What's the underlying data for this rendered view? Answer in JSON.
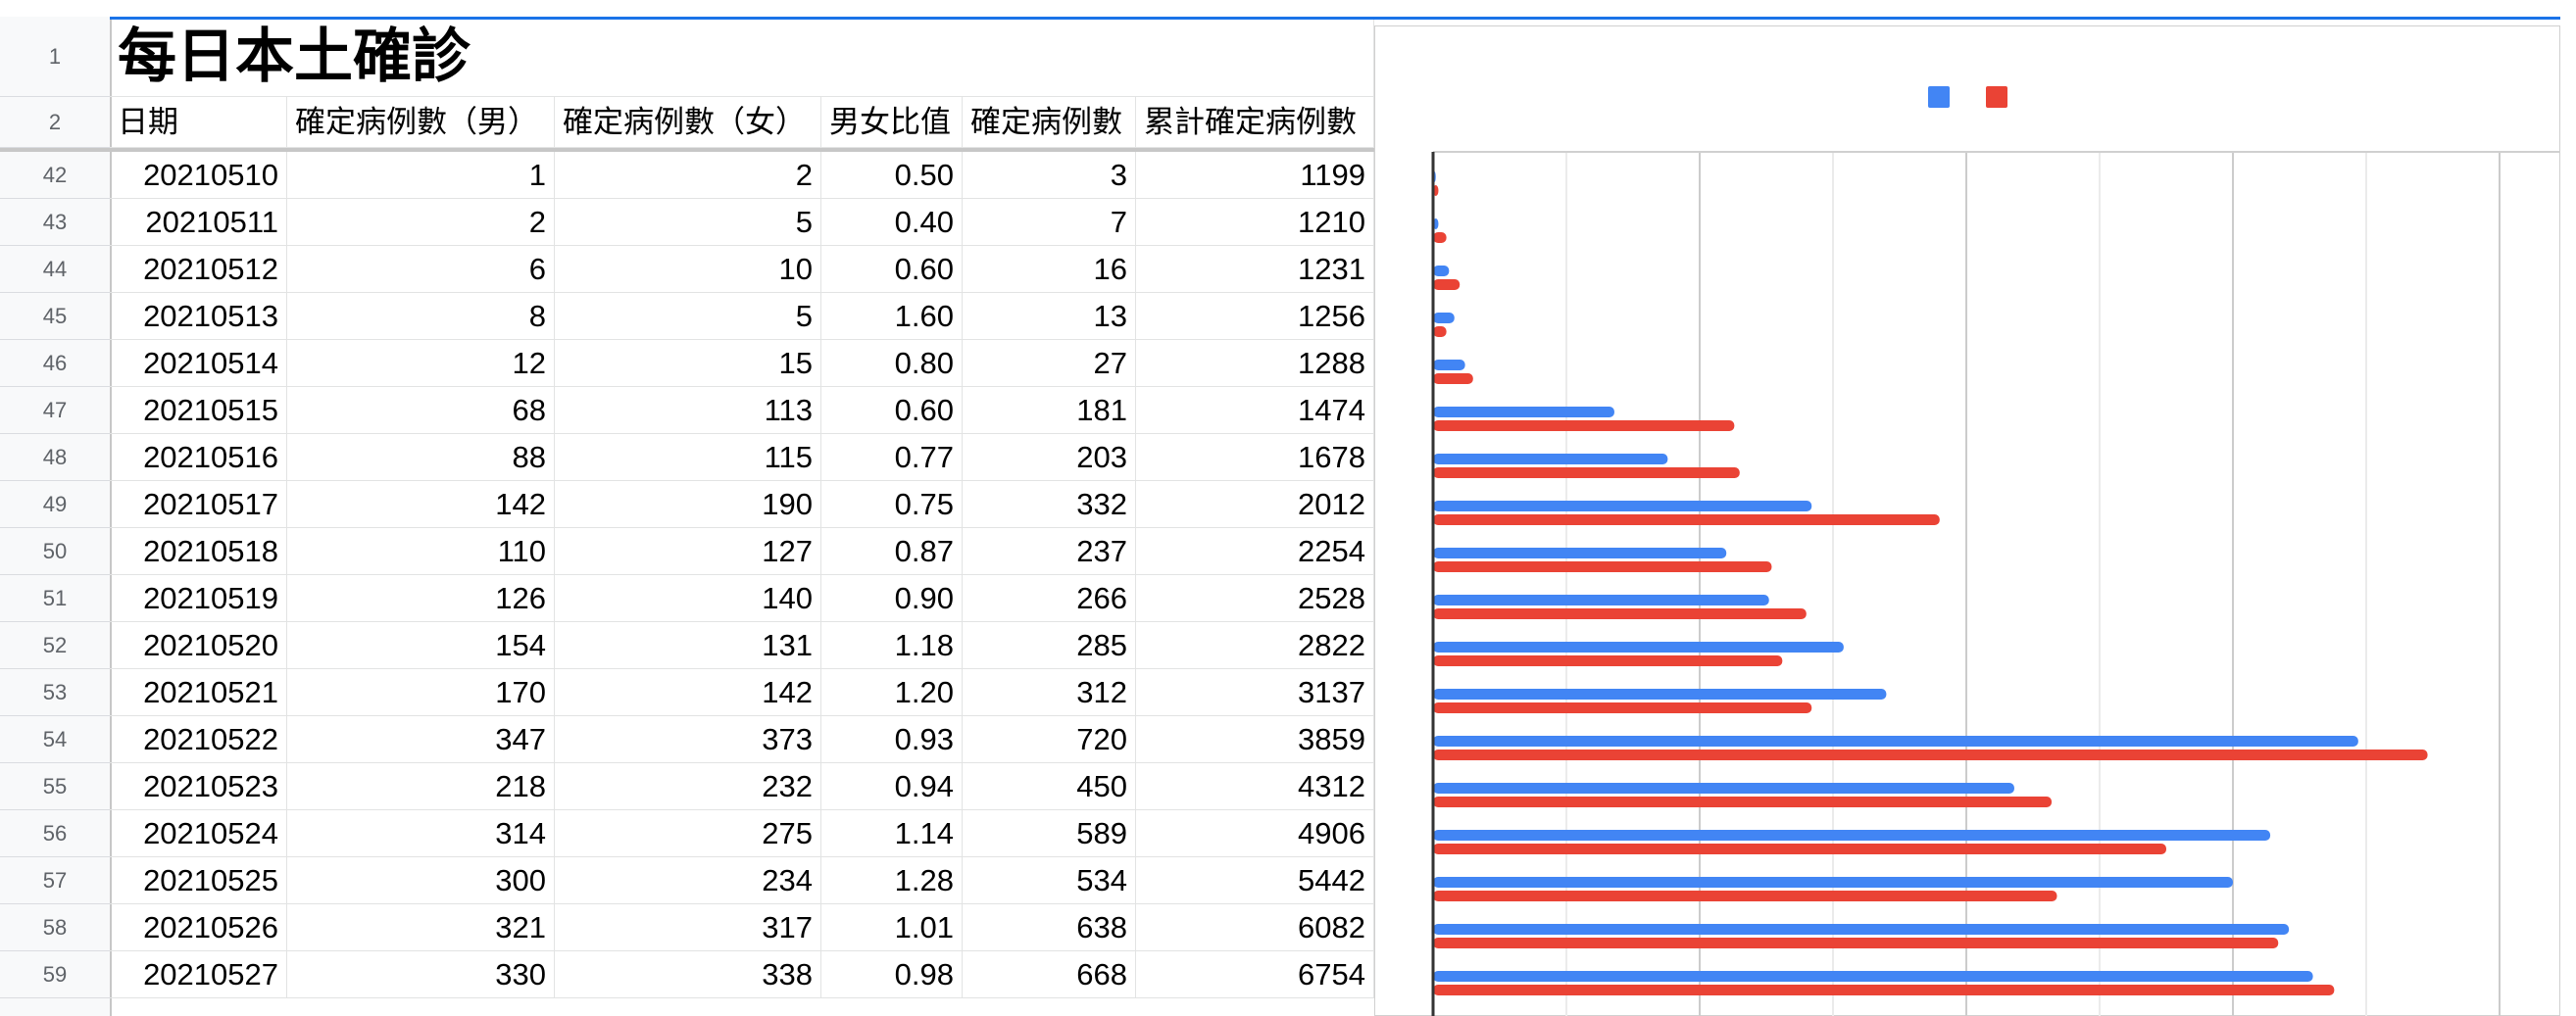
{
  "sheet": {
    "title": "每日本土確診",
    "headers": [
      "日期",
      "確定病例數（男）",
      "確定病例數（女）",
      "男女比值",
      "確定病例數",
      "累計確定病例數"
    ],
    "header_row_numbers": [
      "1",
      "2"
    ],
    "rows": [
      {
        "num": "42",
        "date": "20210510",
        "male": "1",
        "female": "2",
        "ratio": "0.50",
        "total": "3",
        "cum": "1199"
      },
      {
        "num": "43",
        "date": "20210511",
        "male": "2",
        "female": "5",
        "ratio": "0.40",
        "total": "7",
        "cum": "1210"
      },
      {
        "num": "44",
        "date": "20210512",
        "male": "6",
        "female": "10",
        "ratio": "0.60",
        "total": "16",
        "cum": "1231"
      },
      {
        "num": "45",
        "date": "20210513",
        "male": "8",
        "female": "5",
        "ratio": "1.60",
        "total": "13",
        "cum": "1256"
      },
      {
        "num": "46",
        "date": "20210514",
        "male": "12",
        "female": "15",
        "ratio": "0.80",
        "total": "27",
        "cum": "1288"
      },
      {
        "num": "47",
        "date": "20210515",
        "male": "68",
        "female": "113",
        "ratio": "0.60",
        "total": "181",
        "cum": "1474"
      },
      {
        "num": "48",
        "date": "20210516",
        "male": "88",
        "female": "115",
        "ratio": "0.77",
        "total": "203",
        "cum": "1678"
      },
      {
        "num": "49",
        "date": "20210517",
        "male": "142",
        "female": "190",
        "ratio": "0.75",
        "total": "332",
        "cum": "2012"
      },
      {
        "num": "50",
        "date": "20210518",
        "male": "110",
        "female": "127",
        "ratio": "0.87",
        "total": "237",
        "cum": "2254"
      },
      {
        "num": "51",
        "date": "20210519",
        "male": "126",
        "female": "140",
        "ratio": "0.90",
        "total": "266",
        "cum": "2528"
      },
      {
        "num": "52",
        "date": "20210520",
        "male": "154",
        "female": "131",
        "ratio": "1.18",
        "total": "285",
        "cum": "2822"
      },
      {
        "num": "53",
        "date": "20210521",
        "male": "170",
        "female": "142",
        "ratio": "1.20",
        "total": "312",
        "cum": "3137"
      },
      {
        "num": "54",
        "date": "20210522",
        "male": "347",
        "female": "373",
        "ratio": "0.93",
        "total": "720",
        "cum": "3859"
      },
      {
        "num": "55",
        "date": "20210523",
        "male": "218",
        "female": "232",
        "ratio": "0.94",
        "total": "450",
        "cum": "4312"
      },
      {
        "num": "56",
        "date": "20210524",
        "male": "314",
        "female": "275",
        "ratio": "1.14",
        "total": "589",
        "cum": "4906"
      },
      {
        "num": "57",
        "date": "20210525",
        "male": "300",
        "female": "234",
        "ratio": "1.28",
        "total": "534",
        "cum": "5442"
      },
      {
        "num": "58",
        "date": "20210526",
        "male": "321",
        "female": "317",
        "ratio": "1.01",
        "total": "638",
        "cum": "6082"
      },
      {
        "num": "59",
        "date": "20210527",
        "male": "330",
        "female": "338",
        "ratio": "0.98",
        "total": "668",
        "cum": "6754"
      }
    ]
  },
  "colors": {
    "male": "#4285f4",
    "female": "#ea4335",
    "grid": "#d9d9d9",
    "axis": "#333333"
  },
  "chart_data": {
    "type": "bar",
    "orientation": "horizontal",
    "categories": [
      "20210510",
      "20210511",
      "20210512",
      "20210513",
      "20210514",
      "20210515",
      "20210516",
      "20210517",
      "20210518",
      "20210519",
      "20210520",
      "20210521",
      "20210522",
      "20210523",
      "20210524",
      "20210525",
      "20210526",
      "20210527"
    ],
    "series": [
      {
        "values": [
          1,
          2,
          6,
          8,
          12,
          68,
          88,
          142,
          110,
          126,
          154,
          170,
          347,
          218,
          314,
          300,
          321,
          330
        ]
      },
      {
        "values": [
          2,
          5,
          10,
          5,
          15,
          113,
          115,
          190,
          127,
          140,
          131,
          142,
          373,
          232,
          275,
          234,
          317,
          338
        ]
      }
    ],
    "xlim": [
      0,
      400
    ],
    "grid": true,
    "legend": "top-center"
  }
}
